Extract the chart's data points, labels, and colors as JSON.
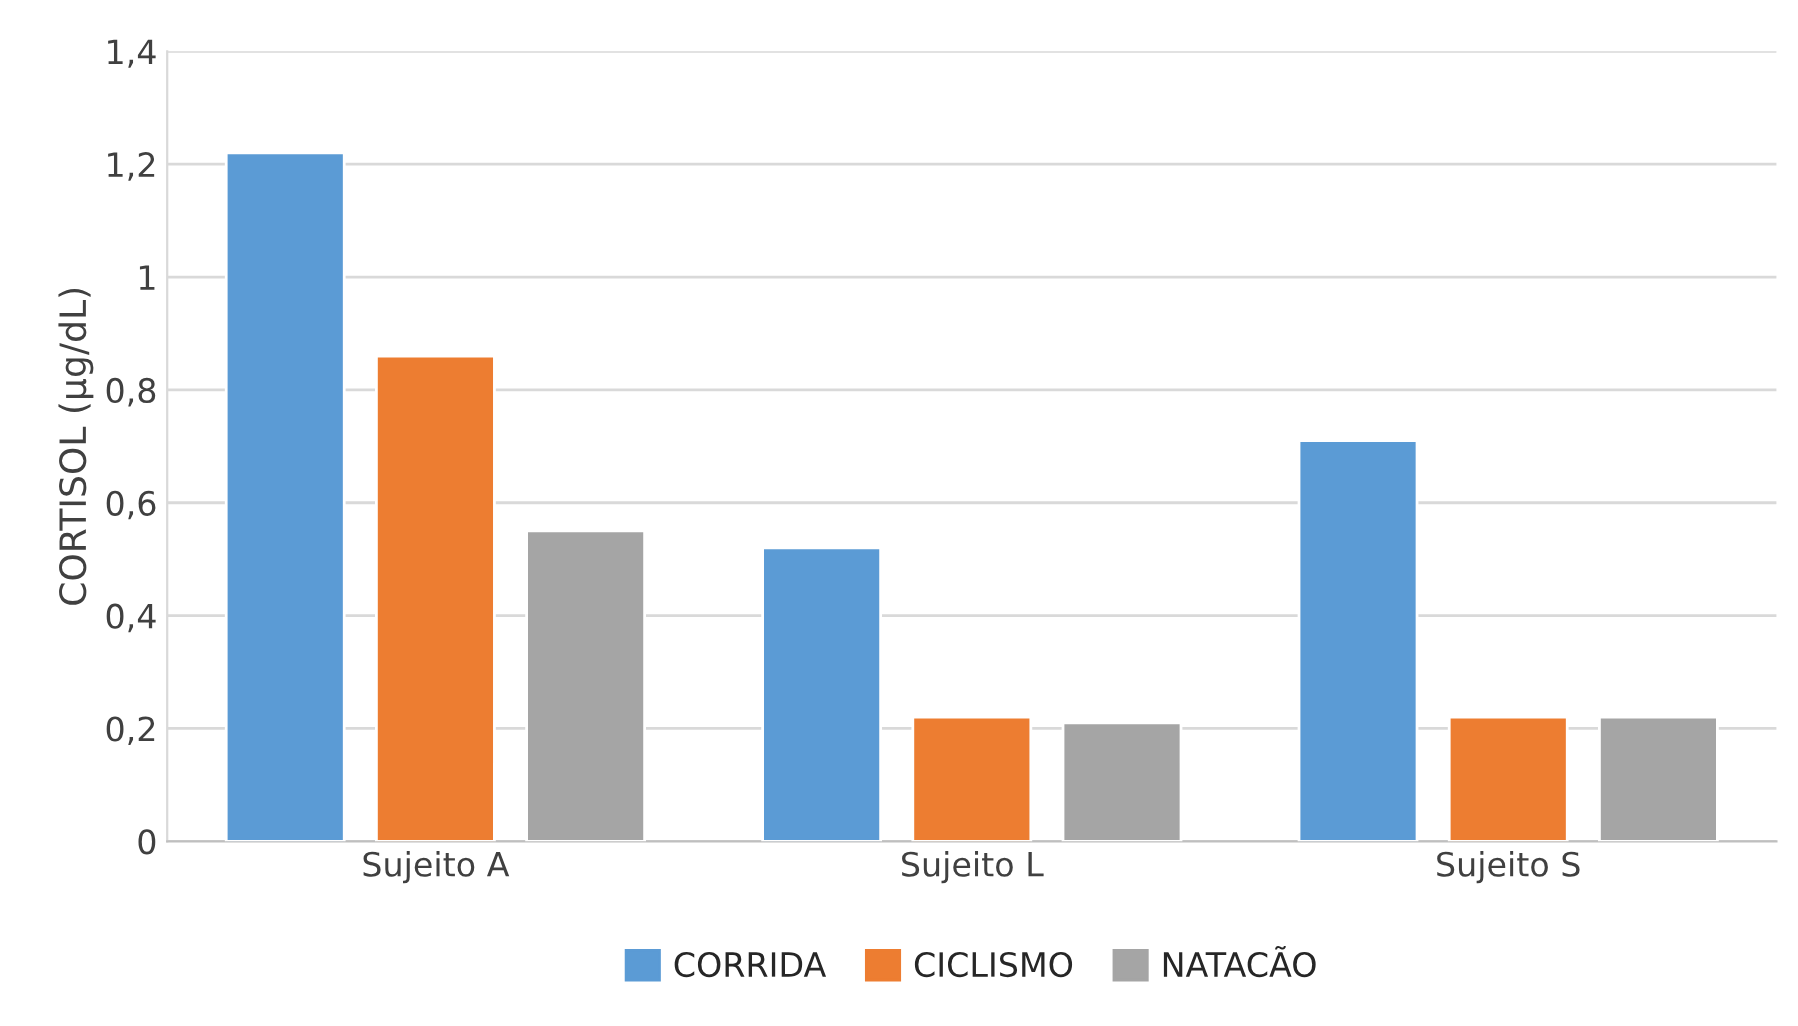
{
  "chart_data": {
    "type": "bar",
    "ylabel": "CORTISOL (µg/dL)",
    "categories": [
      "Sujeito A",
      "Sujeito L",
      "Sujeito S"
    ],
    "series": [
      {
        "name": "CORRIDA",
        "color": "#5b9bd5",
        "values": [
          1.22,
          0.52,
          0.71
        ]
      },
      {
        "name": "CICLISMO",
        "color": "#ed7d31",
        "values": [
          0.86,
          0.22,
          0.22
        ]
      },
      {
        "name": "NATACÃO",
        "color": "#a5a5a5",
        "values": [
          0.55,
          0.21,
          0.22
        ]
      }
    ],
    "ylim": [
      0,
      1.4
    ],
    "yticks": [
      0,
      {
        "value": 0.2,
        "label": "0,2"
      },
      {
        "value": 0.4,
        "label": "0,4"
      },
      {
        "value": 0.6,
        "label": "0,6"
      },
      {
        "value": 0.8,
        "label": "0,8"
      },
      1,
      {
        "value": 1.2,
        "label": "1,2"
      },
      {
        "value": 1.4,
        "label": "1,4"
      }
    ],
    "grid": "y",
    "legend": "bottom"
  }
}
